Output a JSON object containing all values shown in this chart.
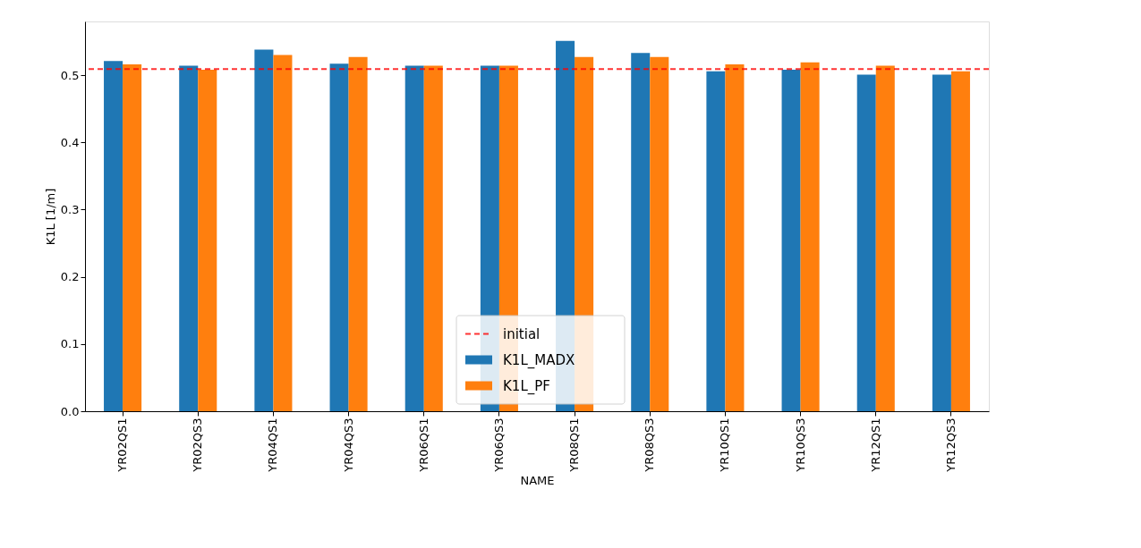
{
  "chart_data": {
    "type": "bar",
    "xlabel": "NAME",
    "ylabel": "K1L [1/m]",
    "categories": [
      "YR02QS1",
      "YR02QS3",
      "YR04QS1",
      "YR04QS3",
      "YR06QS1",
      "YR06QS3",
      "YR08QS1",
      "YR08QS3",
      "YR10QS1",
      "YR10QS3",
      "YR12QS1",
      "YR12QS3"
    ],
    "series": [
      {
        "name": "K1L_MADX",
        "color": "#1f77b4",
        "values": [
          0.521,
          0.514,
          0.538,
          0.517,
          0.514,
          0.514,
          0.551,
          0.533,
          0.506,
          0.508,
          0.501,
          0.501
        ]
      },
      {
        "name": "K1L_PF",
        "color": "#ff7f0e",
        "values": [
          0.516,
          0.508,
          0.53,
          0.527,
          0.514,
          0.514,
          0.527,
          0.527,
          0.516,
          0.519,
          0.514,
          0.506
        ]
      }
    ],
    "ref_lines": [
      {
        "axis": "y",
        "value": 0.509,
        "label": "initial",
        "color": "#ff0000",
        "line_style": "dashed"
      }
    ],
    "ylim": [
      0,
      0.58
    ],
    "yticks": [
      {
        "value": 0,
        "label": "0.0"
      },
      0.1,
      0.2,
      0.3,
      0.4,
      0.5
    ],
    "legend": "bottom",
    "grid": false
  }
}
